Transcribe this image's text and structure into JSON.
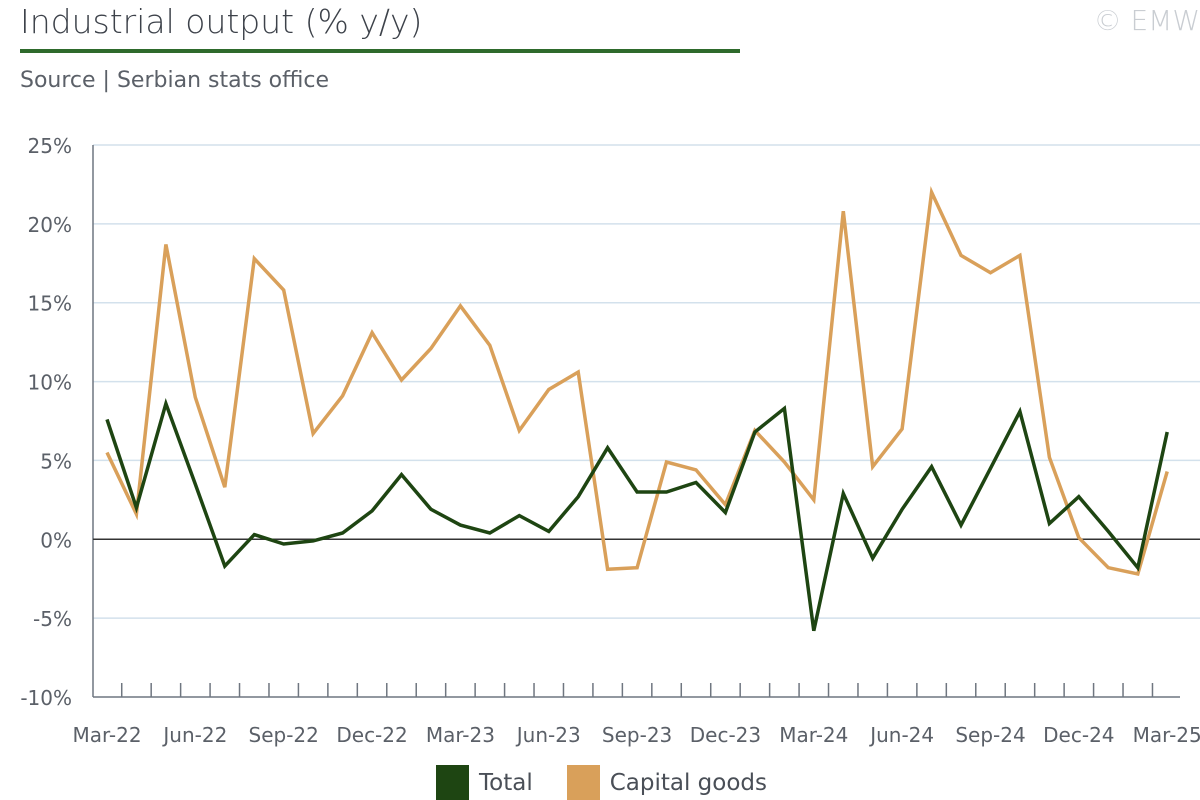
{
  "header": {
    "title": "Industrial output (% y/y)",
    "source": "Source | Serbian stats office",
    "copyright": "© EMW"
  },
  "colors": {
    "total": "#1e4512",
    "capital": "#d9a05a",
    "grid": "#d3e1ec",
    "axis": "#6f7680",
    "zero": "#333333",
    "title_rule": "#2e6a2c"
  },
  "legend": {
    "total_label": "Total",
    "capital_label": "Capital goods"
  },
  "chart_data": {
    "type": "line",
    "title": "Industrial output (% y/y)",
    "ylim": [
      -10,
      25
    ],
    "yticks": [
      -10,
      -5,
      0,
      5,
      10,
      15,
      20,
      25
    ],
    "ytick_labels": [
      "-10%",
      "-5%",
      "0%",
      "5%",
      "10%",
      "15%",
      "20%",
      "25%"
    ],
    "grid": true,
    "legend_position": "bottom-center",
    "x": [
      "Mar-22",
      "Apr-22",
      "May-22",
      "Jun-22",
      "Jul-22",
      "Aug-22",
      "Sep-22",
      "Oct-22",
      "Nov-22",
      "Dec-22",
      "Jan-23",
      "Feb-23",
      "Mar-23",
      "Apr-23",
      "May-23",
      "Jun-23",
      "Jul-23",
      "Aug-23",
      "Sep-23",
      "Oct-23",
      "Nov-23",
      "Dec-23",
      "Jan-24",
      "Feb-24",
      "Mar-24",
      "Apr-24",
      "May-24",
      "Jun-24",
      "Jul-24",
      "Aug-24",
      "Sep-24",
      "Oct-24",
      "Nov-24",
      "Dec-24",
      "Jan-25",
      "Feb-25",
      "Mar-25"
    ],
    "xtick_labels": [
      "Mar-22",
      "Jun-22",
      "Sep-22",
      "Dec-22",
      "Mar-23",
      "Jun-23",
      "Sep-23",
      "Dec-23",
      "Mar-24",
      "Jun-24",
      "Sep-24",
      "Dec-24",
      "Mar-25"
    ],
    "series": [
      {
        "name": "Total",
        "values": [
          7.6,
          2.0,
          8.6,
          3.5,
          -1.7,
          0.3,
          -0.3,
          -0.1,
          0.4,
          1.8,
          4.1,
          1.9,
          0.9,
          0.4,
          1.5,
          0.5,
          2.7,
          5.8,
          3.0,
          3.0,
          3.6,
          1.7,
          6.8,
          8.3,
          -5.8,
          2.9,
          -1.2,
          1.9,
          4.6,
          0.9,
          4.5,
          8.1,
          1.0,
          2.7,
          0.5,
          -1.8,
          6.8
        ]
      },
      {
        "name": "Capital goods",
        "values": [
          5.5,
          1.6,
          18.7,
          9.0,
          3.3,
          17.8,
          15.8,
          6.7,
          9.1,
          13.1,
          10.1,
          12.1,
          14.8,
          12.3,
          6.9,
          9.5,
          10.6,
          -1.9,
          -1.8,
          4.9,
          4.4,
          2.2,
          6.9,
          4.9,
          2.5,
          20.8,
          4.6,
          7.0,
          22.0,
          18.0,
          16.9,
          18.0,
          5.2,
          0.1,
          -1.8,
          -2.2,
          4.3
        ]
      }
    ]
  }
}
